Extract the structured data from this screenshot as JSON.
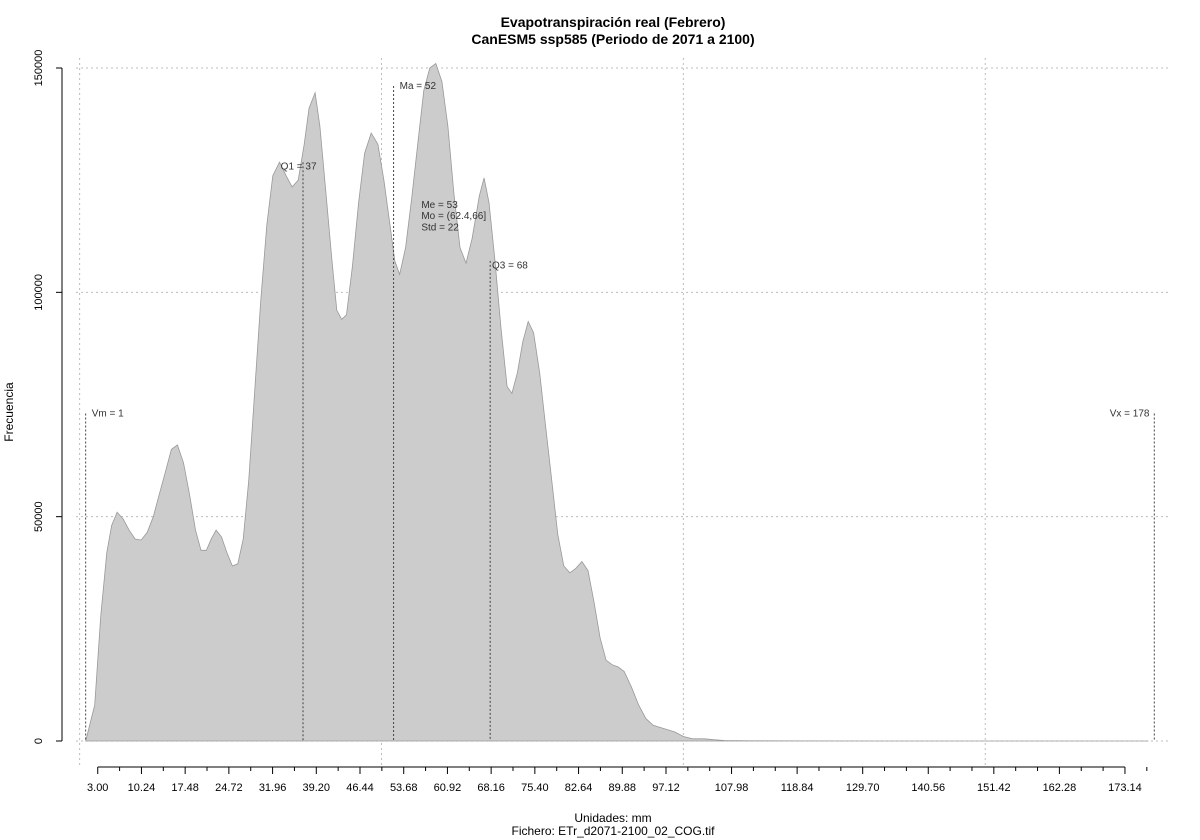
{
  "chart_data": {
    "type": "area",
    "title": "Evapotranspiración real (Febrero)",
    "subtitle": "CanESM5 ssp585 (Periodo de 2071 a 2100)",
    "xlabel": "Unidades: mm",
    "xlabel2": "Fichero: ETr_d2071-2100_02_COG.tif",
    "ylabel": "Frecuencia",
    "xlim": [
      -0.6,
      180.6
    ],
    "ylim": [
      0,
      150000
    ],
    "x_ticks": [
      3.0,
      10.24,
      17.48,
      24.72,
      31.96,
      39.2,
      46.44,
      53.68,
      60.92,
      68.16,
      75.4,
      82.64,
      89.88,
      97.12,
      107.98,
      118.84,
      129.7,
      140.56,
      151.42,
      162.28,
      173.14
    ],
    "x_tick_labels": [
      "3.00",
      "10.24",
      "17.48",
      "24.72",
      "31.96",
      "39.20",
      "46.44",
      "53.68",
      "60.92",
      "68.16",
      "75.40",
      "82.64",
      "89.88",
      "97.12",
      "107.98",
      "118.84",
      "129.70",
      "140.56",
      "151.42",
      "162.28",
      "173.14"
    ],
    "minor_ticks": [
      6.62,
      13.86,
      21.1,
      28.34,
      35.58,
      42.82,
      50.06,
      57.3,
      64.54,
      71.78,
      79.02,
      86.26,
      93.5,
      100.74,
      104.36,
      111.6,
      115.22,
      122.46,
      126.08,
      133.32,
      136.94,
      144.18,
      147.8,
      155.04,
      158.66,
      165.9,
      169.52,
      176.76
    ],
    "y_ticks": [
      0,
      50000,
      100000,
      150000
    ],
    "y_tick_labels": [
      "0",
      "50000",
      "100000",
      "150000"
    ],
    "x_grid": [
      0,
      50,
      100,
      150
    ],
    "grid": true,
    "points": [
      [
        1,
        0
      ],
      [
        2.5,
        8000
      ],
      [
        3.5,
        28000
      ],
      [
        4.5,
        42000
      ],
      [
        5.3,
        48000
      ],
      [
        6.2,
        51000
      ],
      [
        7.2,
        49500
      ],
      [
        8.2,
        47000
      ],
      [
        9.2,
        45000
      ],
      [
        10.2,
        44800
      ],
      [
        11.2,
        46500
      ],
      [
        12.2,
        50000
      ],
      [
        13.2,
        55000
      ],
      [
        14.2,
        60000
      ],
      [
        15.2,
        65000
      ],
      [
        16.2,
        66000
      ],
      [
        17.2,
        62000
      ],
      [
        18.2,
        55000
      ],
      [
        19.2,
        47000
      ],
      [
        20.1,
        42500
      ],
      [
        21.0,
        42500
      ],
      [
        21.8,
        45000
      ],
      [
        22.6,
        47000
      ],
      [
        23.5,
        45500
      ],
      [
        24.4,
        42000
      ],
      [
        25.3,
        39000
      ],
      [
        26.2,
        39500
      ],
      [
        27.1,
        45000
      ],
      [
        28.0,
        58000
      ],
      [
        29.0,
        78000
      ],
      [
        30.0,
        98000
      ],
      [
        31.0,
        115000
      ],
      [
        32.0,
        126000
      ],
      [
        33.1,
        129000
      ],
      [
        34.2,
        126000
      ],
      [
        35.2,
        123500
      ],
      [
        36.2,
        125000
      ],
      [
        37.2,
        133000
      ],
      [
        38.0,
        141000
      ],
      [
        39.0,
        144500
      ],
      [
        39.8,
        137000
      ],
      [
        40.8,
        122000
      ],
      [
        41.8,
        107000
      ],
      [
        42.6,
        96000
      ],
      [
        43.4,
        94000
      ],
      [
        44.2,
        95000
      ],
      [
        45.2,
        106000
      ],
      [
        46.2,
        120000
      ],
      [
        47.2,
        131000
      ],
      [
        48.3,
        135500
      ],
      [
        49.4,
        133000
      ],
      [
        50.4,
        125000
      ],
      [
        51.4,
        115000
      ],
      [
        52.2,
        107000
      ],
      [
        53.0,
        104000
      ],
      [
        54.0,
        110000
      ],
      [
        55.0,
        121000
      ],
      [
        56.0,
        133000
      ],
      [
        57.0,
        145000
      ],
      [
        58.0,
        150000
      ],
      [
        59.0,
        151000
      ],
      [
        60.0,
        147000
      ],
      [
        61.0,
        137000
      ],
      [
        62.0,
        122000
      ],
      [
        63.0,
        110000
      ],
      [
        64.0,
        106500
      ],
      [
        65.0,
        112000
      ],
      [
        66.2,
        121500
      ],
      [
        67.0,
        125500
      ],
      [
        67.8,
        120000
      ],
      [
        68.8,
        107000
      ],
      [
        69.8,
        92000
      ],
      [
        70.8,
        79000
      ],
      [
        71.6,
        77500
      ],
      [
        72.5,
        82000
      ],
      [
        73.4,
        89000
      ],
      [
        74.3,
        93500
      ],
      [
        75.2,
        91000
      ],
      [
        76.2,
        82000
      ],
      [
        77.2,
        70000
      ],
      [
        78.2,
        58000
      ],
      [
        79.2,
        46000
      ],
      [
        80.2,
        39000
      ],
      [
        81.2,
        37500
      ],
      [
        82.2,
        38500
      ],
      [
        83.2,
        40000
      ],
      [
        84.2,
        38000
      ],
      [
        85.2,
        31000
      ],
      [
        86.2,
        23000
      ],
      [
        87.2,
        18000
      ],
      [
        88.2,
        17000
      ],
      [
        89.2,
        16500
      ],
      [
        90.2,
        15500
      ],
      [
        91.4,
        12000
      ],
      [
        92.6,
        8000
      ],
      [
        93.8,
        5000
      ],
      [
        95.0,
        3500
      ],
      [
        96.2,
        3000
      ],
      [
        97.4,
        2500
      ],
      [
        98.6,
        2000
      ],
      [
        100.0,
        1000
      ],
      [
        101.5,
        500
      ],
      [
        103.5,
        500
      ],
      [
        105.0,
        300
      ],
      [
        107.0,
        100
      ],
      [
        109.0,
        100
      ],
      [
        111.0,
        50
      ],
      [
        120.0,
        20
      ],
      [
        140.0,
        10
      ],
      [
        160.0,
        5
      ],
      [
        176.0,
        5
      ],
      [
        177.0,
        0
      ]
    ],
    "vlines": [
      {
        "x": 1,
        "y_top": 73000
      },
      {
        "x": 37,
        "y_top": 129000
      },
      {
        "x": 52,
        "y_top": 146000
      },
      {
        "x": 68,
        "y_top": 107000
      },
      {
        "x": 178,
        "y_top": 73000
      }
    ],
    "annotations": [
      {
        "text": "Vm = 1",
        "x": 2.0,
        "y": 73000,
        "anchor": "start"
      },
      {
        "text": "Q1 = 37",
        "x": 33.3,
        "y": 128000,
        "anchor": "start"
      },
      {
        "text": "Ma = 52",
        "x": 53.0,
        "y": 146000,
        "anchor": "start"
      },
      {
        "text": "Me = 53",
        "x": 56.6,
        "y": 119500,
        "anchor": "start"
      },
      {
        "text": "Mo = (62.4,66]",
        "x": 56.6,
        "y": 117000,
        "anchor": "start"
      },
      {
        "text": "Std = 22",
        "x": 56.6,
        "y": 114500,
        "anchor": "start"
      },
      {
        "text": "Q3 = 68",
        "x": 68.3,
        "y": 106000,
        "anchor": "start"
      },
      {
        "text": "Vx = 178",
        "x": 177.2,
        "y": 73000,
        "anchor": "end"
      }
    ],
    "fill_color": "#cccccc",
    "line_color": "#999999"
  }
}
